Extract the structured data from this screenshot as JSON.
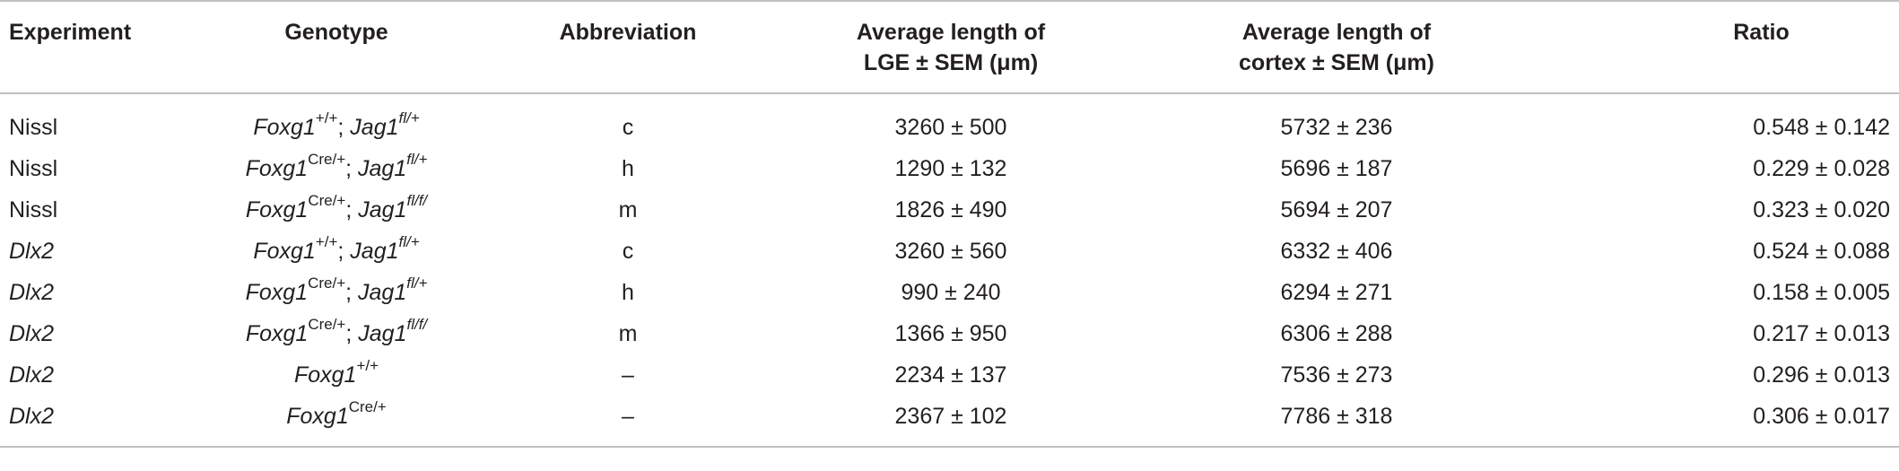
{
  "headers": {
    "experiment": "Experiment",
    "genotype": "Genotype",
    "abbreviation": "Abbreviation",
    "lge_line1": "Average length of",
    "lge_line2": "LGE ± SEM (μm)",
    "cortex_line1": "Average length of",
    "cortex_line2": "cortex ± SEM (μm)",
    "ratio": "Ratio"
  },
  "rows": [
    {
      "experiment": "Nissl",
      "experiment_italic": false,
      "foxg1": "Foxg1",
      "foxg1_sup": "+/+",
      "sep": "; ",
      "jag1": "Jag1",
      "jag1_sup": "fl/+",
      "abbreviation": "c",
      "lge": "3260 ± 500",
      "cortex": "5732 ± 236",
      "ratio": "0.548 ± 0.142"
    },
    {
      "experiment": "Nissl",
      "experiment_italic": false,
      "foxg1": "Foxg1",
      "foxg1_sup": "Cre/+",
      "sep": "; ",
      "jag1": "Jag1",
      "jag1_sup": "fl/+",
      "abbreviation": "h",
      "lge": "1290 ± 132",
      "cortex": "5696 ± 187",
      "ratio": "0.229 ± 0.028"
    },
    {
      "experiment": "Nissl",
      "experiment_italic": false,
      "foxg1": "Foxg1",
      "foxg1_sup": "Cre/+",
      "sep": "; ",
      "jag1": "Jag1",
      "jag1_sup": "fl/f/",
      "abbreviation": "m",
      "lge": "1826 ± 490",
      "cortex": "5694 ± 207",
      "ratio": "0.323 ± 0.020"
    },
    {
      "experiment": "Dlx2",
      "experiment_italic": true,
      "foxg1": "Foxg1",
      "foxg1_sup": "+/+",
      "sep": "; ",
      "jag1": "Jag1",
      "jag1_sup": "fl/+",
      "abbreviation": "c",
      "lge": "3260 ± 560",
      "cortex": "6332 ± 406",
      "ratio": "0.524 ± 0.088"
    },
    {
      "experiment": "Dlx2",
      "experiment_italic": true,
      "foxg1": "Foxg1",
      "foxg1_sup": "Cre/+",
      "sep": "; ",
      "jag1": "Jag1",
      "jag1_sup": "fl/+",
      "abbreviation": "h",
      "lge": "990 ± 240",
      "cortex": "6294 ± 271",
      "ratio": "0.158 ± 0.005"
    },
    {
      "experiment": "Dlx2",
      "experiment_italic": true,
      "foxg1": "Foxg1",
      "foxg1_sup": "Cre/+",
      "sep": "; ",
      "jag1": "Jag1",
      "jag1_sup": "fl/f/",
      "abbreviation": "m",
      "lge": "1366 ± 950",
      "cortex": "6306 ± 288",
      "ratio": "0.217 ± 0.013"
    },
    {
      "experiment": "Dlx2",
      "experiment_italic": true,
      "foxg1": "Foxg1",
      "foxg1_sup": "+/+",
      "sep": "",
      "jag1": "",
      "jag1_sup": "",
      "abbreviation": "–",
      "lge": "2234 ± 137",
      "cortex": "7536 ± 273",
      "ratio": "0.296 ± 0.013"
    },
    {
      "experiment": "Dlx2",
      "experiment_italic": true,
      "foxg1": "Foxg1",
      "foxg1_sup": "Cre/+",
      "sep": "",
      "jag1": "",
      "jag1_sup": "",
      "abbreviation": "–",
      "lge": "2367 ± 102",
      "cortex": "7786 ± 318",
      "ratio": "0.306 ± 0.017"
    }
  ],
  "colors": {
    "text": "#231f20",
    "rule": "#bfbfbf"
  }
}
